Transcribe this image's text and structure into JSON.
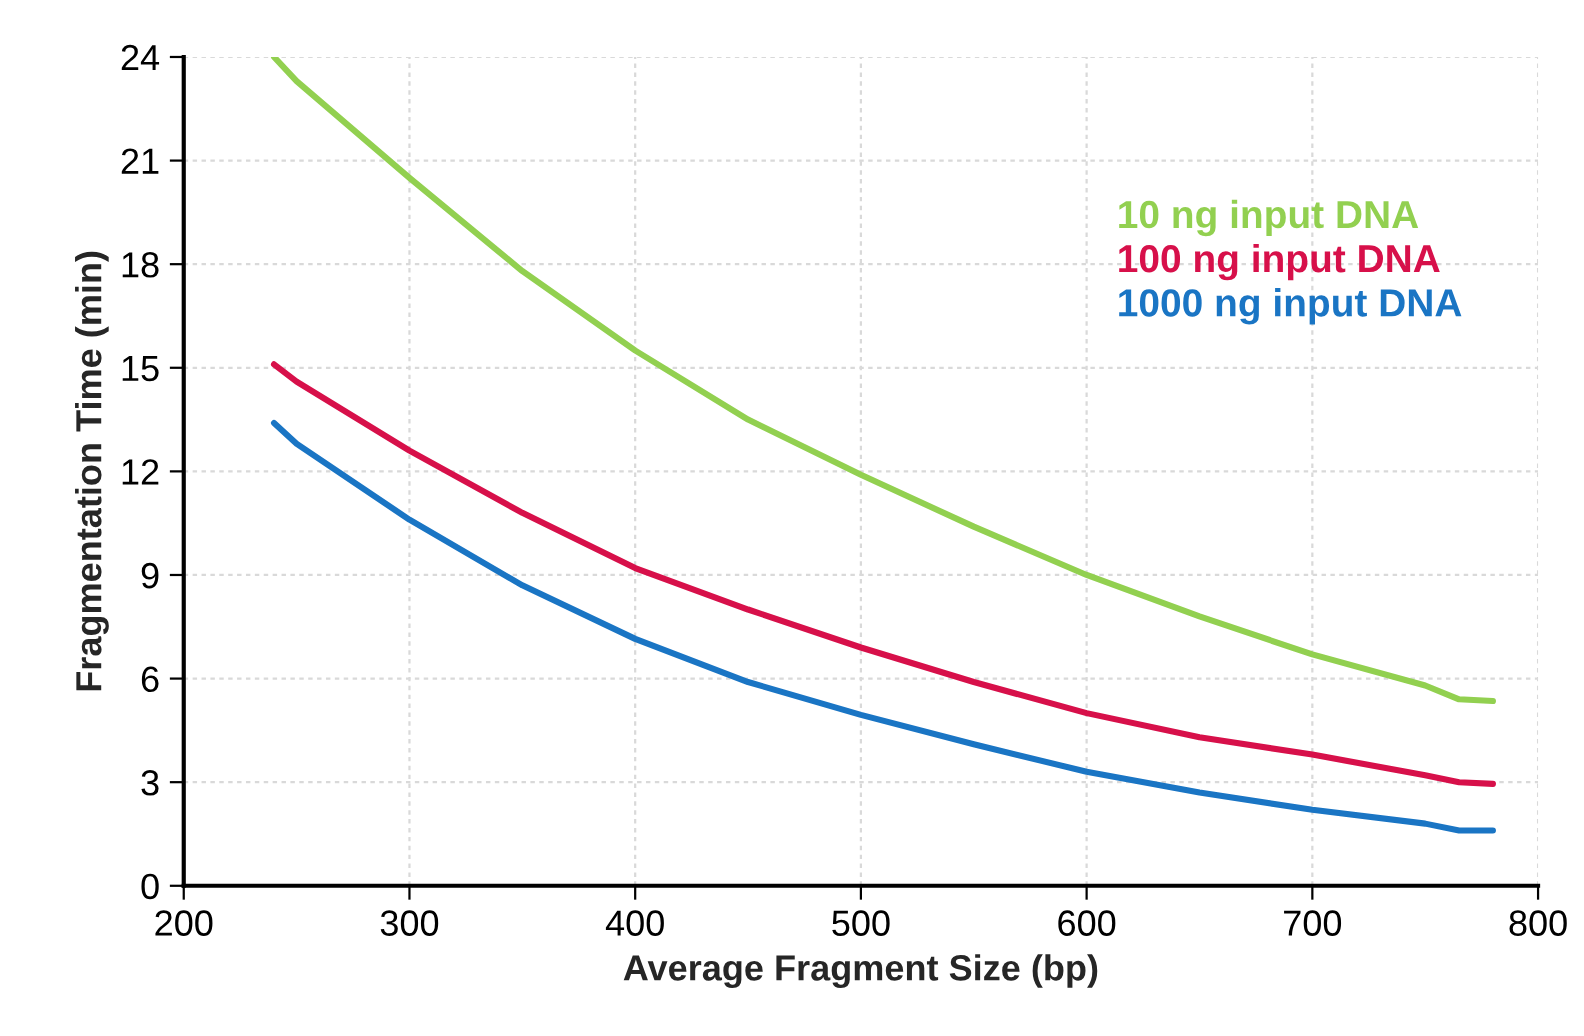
{
  "chart_data": {
    "type": "line",
    "xlabel": "Average Fragment Size (bp)",
    "ylabel": "Fragmentation Time (min)",
    "xlim": [
      200,
      800
    ],
    "xticks": [
      200,
      300,
      400,
      500,
      600,
      700,
      800
    ],
    "ylim": [
      0,
      24
    ],
    "yticks": [
      0,
      3,
      6,
      9,
      12,
      15,
      18,
      21,
      24
    ],
    "grid": true,
    "legend": "top right",
    "marker": "none",
    "line_style": "solid",
    "x": [
      240,
      250,
      300,
      350,
      400,
      450,
      500,
      550,
      600,
      650,
      700,
      750,
      765,
      780
    ],
    "series": [
      {
        "name": "10 ng input DNA",
        "color": "#92d050",
        "values": [
          24,
          23.3,
          20.5,
          17.8,
          15.5,
          13.5,
          11.9,
          10.4,
          9.0,
          7.8,
          6.7,
          5.8,
          5.4,
          5.35
        ]
      },
      {
        "name": "100 ng input DNA",
        "color": "#d7104a",
        "values": [
          15.1,
          14.6,
          12.6,
          10.8,
          9.2,
          8.0,
          6.9,
          5.9,
          5.0,
          4.3,
          3.8,
          3.2,
          3.0,
          2.95
        ]
      },
      {
        "name": "1000 ng input DNA",
        "color": "#1a75c4",
        "values": [
          13.4,
          12.8,
          10.6,
          8.7,
          7.15,
          5.9,
          4.95,
          4.1,
          3.3,
          2.7,
          2.2,
          1.8,
          1.6,
          1.6
        ]
      }
    ]
  }
}
